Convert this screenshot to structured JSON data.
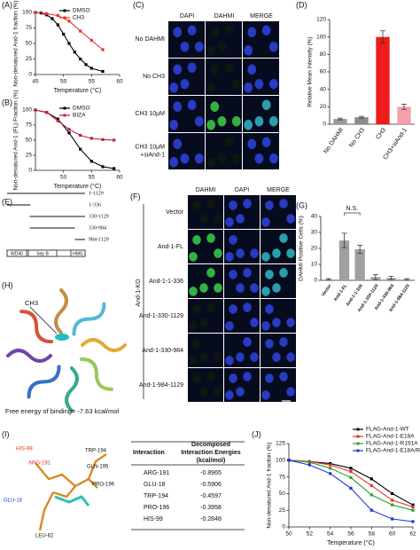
{
  "chart_data": [
    {
      "type": "line",
      "label": "(A)",
      "xlabel": "Temperature (°C)",
      "ylabel": "Non-denatured And-1 fraction (%)",
      "xlim": [
        45,
        60
      ],
      "xticks": [
        45,
        50,
        55,
        60
      ],
      "ylim": [
        0,
        100
      ],
      "yticks": [
        0,
        25,
        50,
        75,
        100
      ],
      "legend": "upper right",
      "series": [
        {
          "name": "DMSO",
          "color": "#000000",
          "x": [
            45,
            46,
            47,
            48,
            49,
            50,
            51,
            52,
            53,
            54,
            55,
            57
          ],
          "values": [
            100,
            99,
            96,
            90,
            80,
            65,
            50,
            36,
            25,
            16,
            10,
            5
          ]
        },
        {
          "name": "CH3",
          "color": "#e8302a",
          "x": [
            45,
            47,
            49,
            51,
            53,
            55,
            57
          ],
          "values": [
            100,
            98,
            95,
            86,
            70,
            55,
            40
          ]
        }
      ]
    },
    {
      "type": "line",
      "label": "(B)",
      "xlabel": "Temperature (°C)",
      "ylabel": "Non-denatured And-1 (FL) Fraction (%)",
      "xlim": [
        45,
        60
      ],
      "xticks": [
        50,
        55,
        60
      ],
      "ylim": [
        0,
        100
      ],
      "yticks": [
        0,
        25,
        50,
        75,
        100
      ],
      "legend": "upper right",
      "series": [
        {
          "name": "DMSO",
          "color": "#000000",
          "x": [
            45,
            47,
            49,
            51,
            53,
            55,
            57,
            59
          ],
          "values": [
            100,
            96,
            85,
            62,
            35,
            15,
            6,
            3
          ]
        },
        {
          "name": "BIZA",
          "color": "#c0203a",
          "x": [
            45,
            47,
            49,
            51,
            53,
            55,
            57,
            59
          ],
          "values": [
            100,
            96,
            82,
            68,
            58,
            53,
            51,
            50
          ]
        }
      ]
    },
    {
      "type": "bar",
      "label": "(D)",
      "ylabel": "Relative Mean Intensity (%)",
      "categories": [
        "No DAHMI",
        "No CH3",
        "CH3",
        "CH3+siAnd-1"
      ],
      "values": [
        6,
        8,
        100,
        20
      ],
      "errors": [
        1,
        1,
        7,
        3
      ],
      "colors": [
        "#9a9a9a",
        "#8a8a8a",
        "#ee1c1c",
        "#f4a0a8"
      ],
      "ylim": [
        0,
        120
      ],
      "yticks": [
        0,
        20,
        40,
        60,
        80,
        100,
        120
      ]
    },
    {
      "type": "bar",
      "label": "(G)",
      "ylabel": "DAHMI Positive Cells (%)",
      "annotation": "N.S.",
      "categories": [
        "Vector",
        "And-1-FL",
        "And-1-1-336",
        "And-1-330-1129",
        "And-1-330-984",
        "And-1-984-1129"
      ],
      "values": [
        0.5,
        25,
        19.5,
        2,
        1.5,
        0.5
      ],
      "errors": [
        0.5,
        4.5,
        2.5,
        1.5,
        1,
        0.5
      ],
      "colors": [
        "#a0a0a0",
        "#a0a0a0",
        "#a0a0a0",
        "#a0a0a0",
        "#a0a0a0",
        "#a0a0a0"
      ],
      "ylim": [
        0,
        40
      ],
      "yticks": [
        0,
        10,
        20,
        30,
        40
      ]
    },
    {
      "type": "line",
      "label": "(J)",
      "xlabel": "Temperature (°C)",
      "ylabel": "Non-denatured And-1 fraction (%)",
      "xlim": [
        50,
        62
      ],
      "xticks": [
        50,
        52,
        54,
        56,
        58,
        60,
        62
      ],
      "ylim": [
        0,
        125
      ],
      "yticks": [
        0,
        25,
        50,
        75,
        100,
        125
      ],
      "legend": "upper right",
      "series": [
        {
          "name": "FLAG-And-1-WT",
          "color": "#000000",
          "x": [
            50,
            52,
            54,
            56,
            58,
            60,
            62
          ],
          "values": [
            100,
            98,
            95,
            88,
            72,
            50,
            33
          ]
        },
        {
          "name": "FLAG-And-1-E18A",
          "color": "#e8302a",
          "x": [
            50,
            52,
            54,
            56,
            58,
            60,
            62
          ],
          "values": [
            100,
            98,
            93,
            83,
            62,
            40,
            30
          ]
        },
        {
          "name": "FLAG-And-1-R191A",
          "color": "#2ca02c",
          "x": [
            50,
            52,
            54,
            56,
            58,
            60,
            62
          ],
          "values": [
            100,
            97,
            88,
            74,
            48,
            33,
            25
          ]
        },
        {
          "name": "FLAG-And-1-E18A/R191A",
          "color": "#2033d0",
          "x": [
            50,
            52,
            54,
            56,
            58,
            60,
            62
          ],
          "values": [
            100,
            93,
            80,
            58,
            25,
            12,
            8
          ]
        }
      ]
    }
  ],
  "panel_c": {
    "label": "(C)",
    "columns": [
      "DAPI",
      "DAHMI",
      "MERGE"
    ],
    "rows": [
      [
        "No DAHMI"
      ],
      [
        "No CH3"
      ],
      [
        "CH3 10μM"
      ],
      [
        "CH3 10μM",
        "+siAnd-1"
      ]
    ]
  },
  "panel_e": {
    "label": "(E)",
    "constructs": [
      "1-1129",
      "1-336",
      "330-1129",
      "330-984",
      "984-1129"
    ],
    "domains": [
      "WD40",
      "Sep B",
      "HMG"
    ]
  },
  "panel_f": {
    "label": "(F)",
    "side": "And-1-KO",
    "columns": [
      "DAHMI",
      "DAPI",
      "MERGE"
    ],
    "rows": [
      "Vector",
      "And-1-FL",
      "And-1-1-336",
      "And-1-330-1129",
      "And-1-330-984",
      "And-1-984-1129"
    ]
  },
  "panel_h": {
    "label": "(H)",
    "ligand": "CH3",
    "caption": "Free energy of binding= -7.63 kcal/mol"
  },
  "panel_i": {
    "label": "(I)",
    "residues": [
      {
        "name": "HIS-99",
        "color": "#e03020"
      },
      {
        "name": "ARG-191",
        "color": "#e03020"
      },
      {
        "name": "TRP-194",
        "color": "#111111"
      },
      {
        "name": "GLN-195",
        "color": "#111111"
      },
      {
        "name": "PRO-196",
        "color": "#111111"
      },
      {
        "name": "GLU-18",
        "color": "#2040d0"
      },
      {
        "name": "LEU-62",
        "color": "#111111"
      }
    ],
    "table": {
      "headers": [
        [
          "Interaction"
        ],
        [
          "Decomposed",
          "Interaction Energies",
          "(kcal/mol)"
        ]
      ],
      "rows": [
        [
          "ARG-191",
          "-0.8965"
        ],
        [
          "GLU-18",
          "-0.5906"
        ],
        [
          "TRP-194",
          "-0.4597"
        ],
        [
          "PRO-196",
          "-0.3958"
        ],
        [
          "HIS-99",
          "-0.2848"
        ]
      ]
    }
  }
}
